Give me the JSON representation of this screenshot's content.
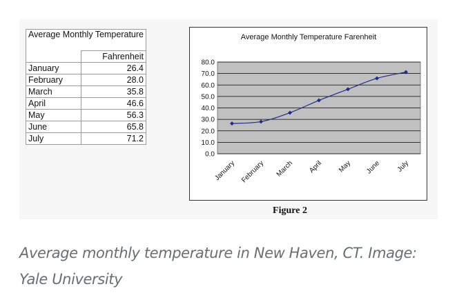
{
  "table": {
    "title": "Average Monthly Temperature",
    "header": "Fahrenheit",
    "rows": [
      {
        "month": "January",
        "value": "26.4"
      },
      {
        "month": "February",
        "value": "28.0"
      },
      {
        "month": "March",
        "value": "35.8"
      },
      {
        "month": "April",
        "value": "46.6"
      },
      {
        "month": "May",
        "value": "56.3"
      },
      {
        "month": "June",
        "value": "65.8"
      },
      {
        "month": "July",
        "value": "71.2"
      }
    ]
  },
  "chart_data": {
    "type": "line",
    "title": "Average Monthly Temperature Farenheit",
    "xlabel": "",
    "ylabel": "",
    "categories": [
      "January",
      "February",
      "March",
      "April",
      "May",
      "June",
      "July"
    ],
    "series": [
      {
        "values": [
          26.4,
          28.0,
          35.8,
          46.6,
          56.3,
          65.8,
          71.2
        ]
      }
    ],
    "ylim": [
      0,
      80
    ],
    "yticks": [
      "0.0",
      "10.0",
      "20.0",
      "30.0",
      "40.0",
      "50.0",
      "60.0",
      "70.0",
      "80.0"
    ],
    "grid": true,
    "legend": "none",
    "colors": {
      "plot_bg": "#c0c0c0",
      "line": "#1f2a8a",
      "grid": "#000000"
    }
  },
  "figure_label": "Figure 2",
  "caption": "Average monthly temperature in New Haven, CT. Image: Yale University"
}
